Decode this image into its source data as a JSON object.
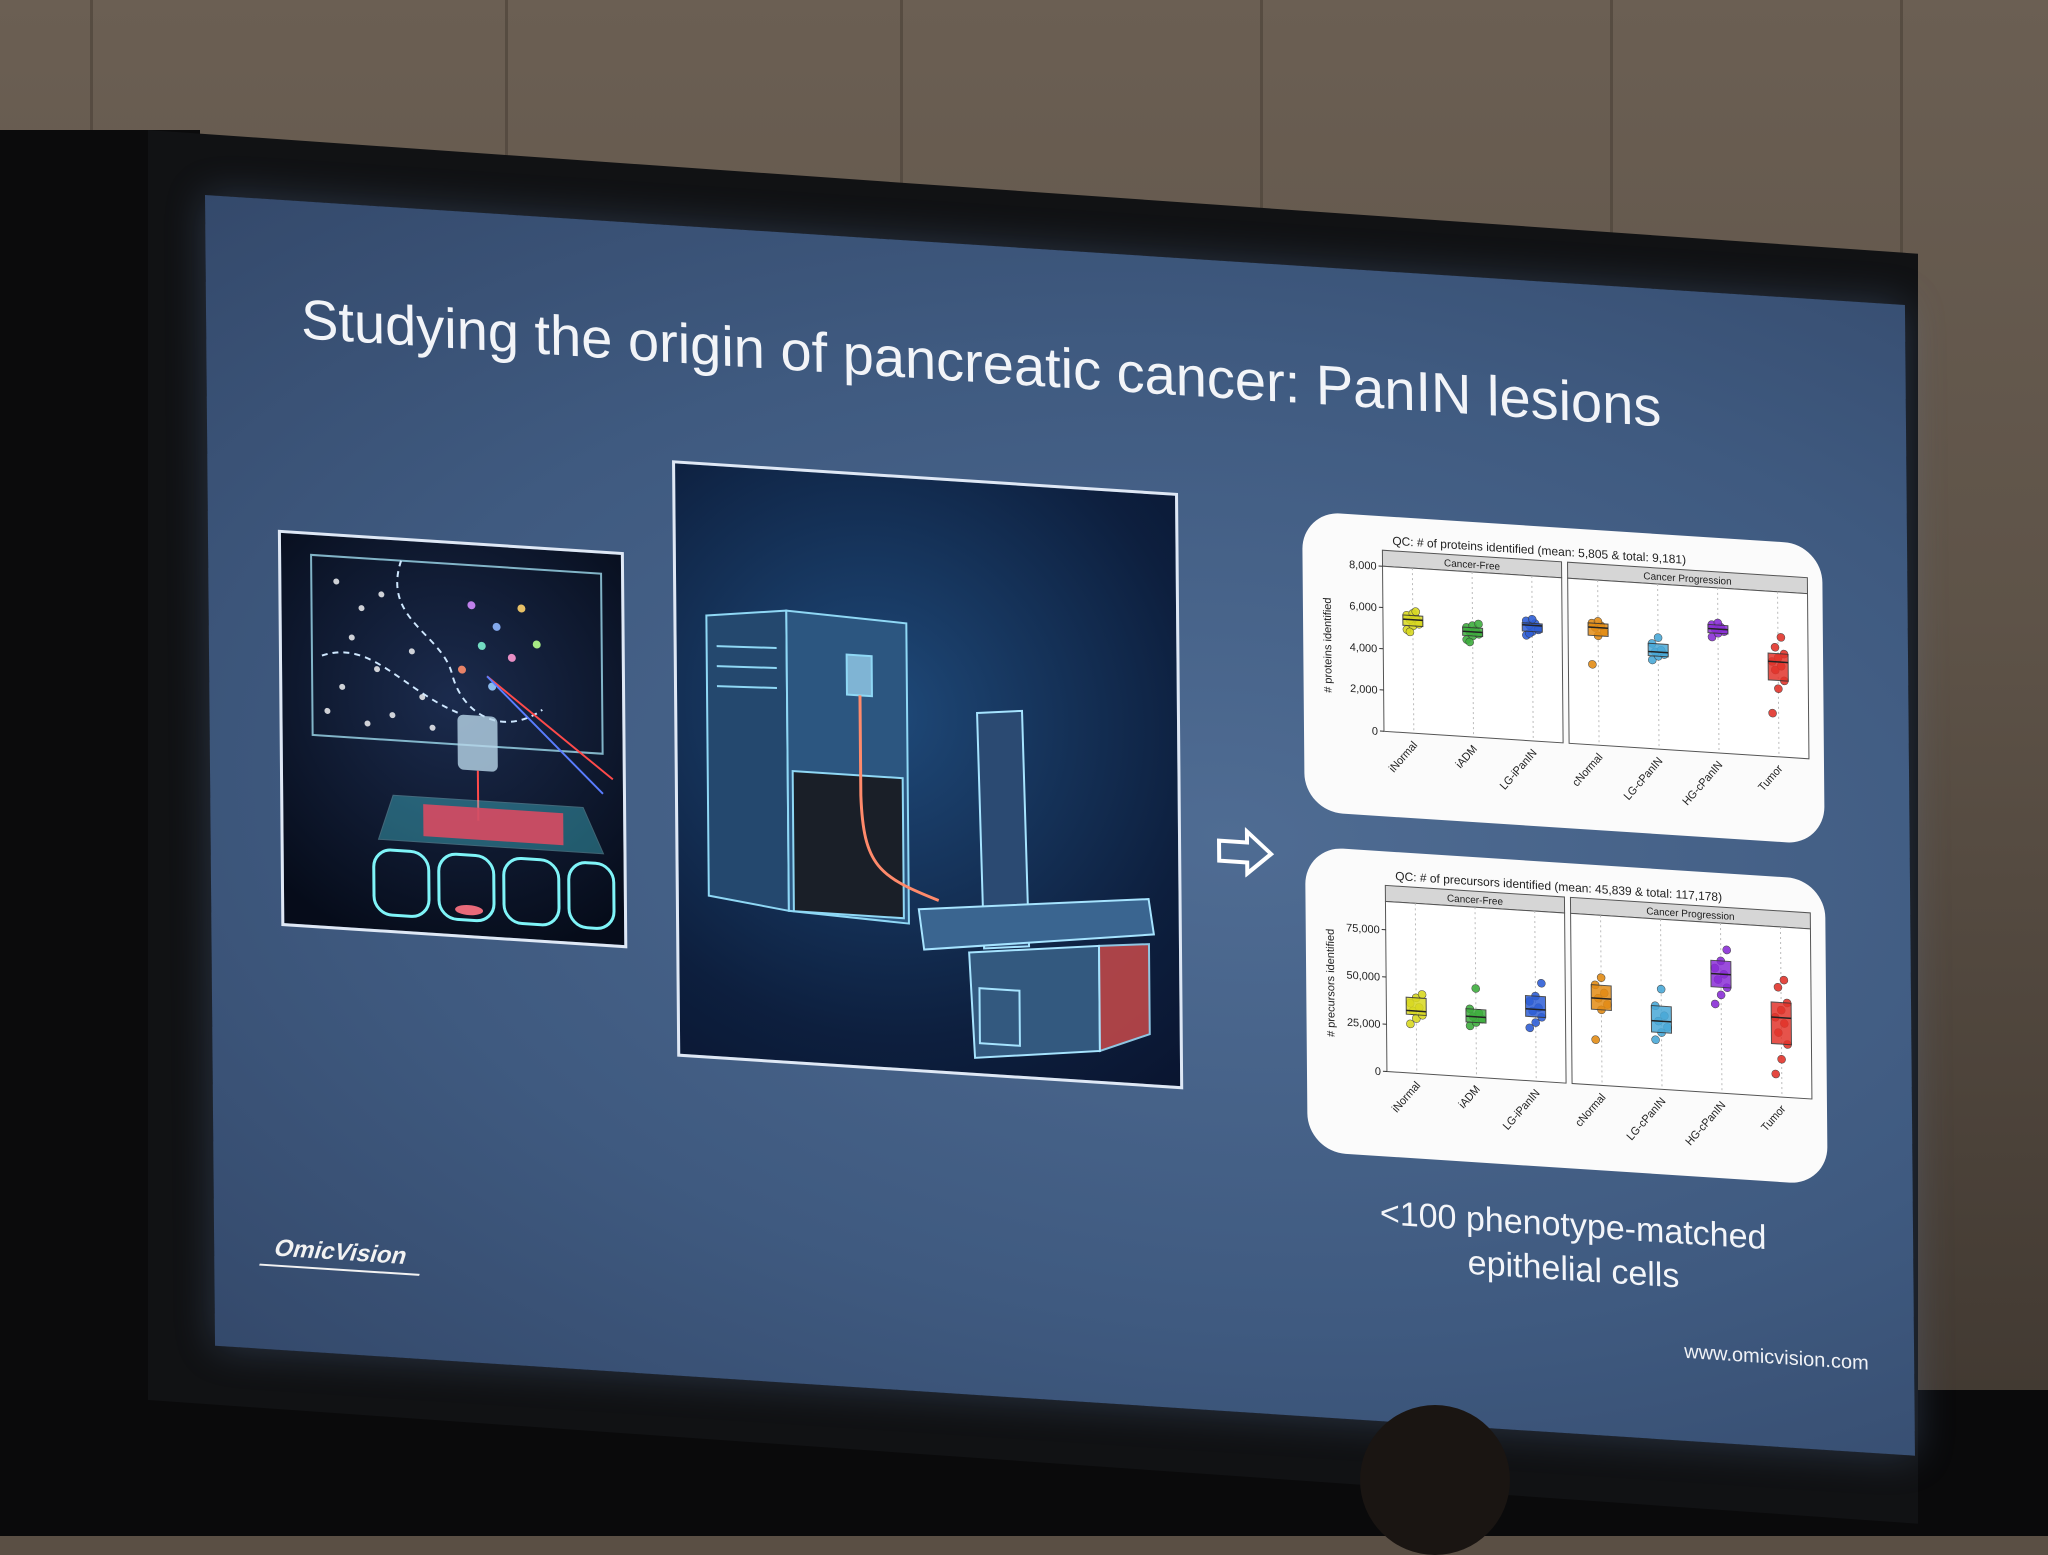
{
  "slide": {
    "title": "Studying the origin of pancreatic cancer: PanIN lesions",
    "caption_line1": "<100 phenotype-matched",
    "caption_line2": "epithelial cells",
    "logo": "OmicVision",
    "website": "www.omicvision.com",
    "arrow_icon": "right-arrow-icon"
  },
  "chart_data": [
    {
      "type": "scatter",
      "title": "QC: # of proteins identified (mean: 5,805 & total: 9,181)",
      "ylabel": "# proteins identified",
      "xlabel": "",
      "ylim": [
        0,
        8000
      ],
      "yticks": [
        "0",
        "2,000",
        "4,000",
        "6,000",
        "8,000"
      ],
      "facets": [
        "Cancer-Free",
        "Cancer Progression"
      ],
      "categories": [
        "iNormal",
        "iADM",
        "LG-iPanIN",
        "cNormal",
        "LG-cPanIN",
        "HG-cPanIN",
        "Tumor"
      ],
      "colors": [
        "#d9d921",
        "#3fae3f",
        "#2f5fd6",
        "#e38c16",
        "#4aa9d8",
        "#8a2fd6",
        "#e2352c"
      ],
      "medians": [
        5500,
        5100,
        5600,
        5700,
        4700,
        6000,
        4600
      ],
      "points": [
        [
          5000,
          5200,
          5400,
          5500,
          5600,
          5700,
          5800,
          5300,
          4900,
          5900
        ],
        [
          4700,
          4900,
          5000,
          5100,
          5200,
          5300,
          5400,
          5500,
          4600
        ],
        [
          5100,
          5300,
          5500,
          5600,
          5700,
          5800,
          5900,
          5400,
          5200
        ],
        [
          3900,
          5300,
          5500,
          5700,
          5800,
          5900,
          6000
        ],
        [
          4300,
          4500,
          4600,
          4700,
          4800,
          5100,
          5400
        ],
        [
          5600,
          5800,
          5900,
          6000,
          6100,
          6200,
          6300
        ],
        [
          2100,
          3300,
          3700,
          4200,
          4400,
          4600,
          4800,
          5000,
          5300,
          5800
        ]
      ]
    },
    {
      "type": "scatter",
      "title": "QC: # of precursors identified (mean: 45,839 & total: 117,178)",
      "ylabel": "# precursors identified",
      "xlabel": "",
      "ylim": [
        0,
        90000
      ],
      "yticks": [
        "0",
        "25,000",
        "50,000",
        "75,000"
      ],
      "facets": [
        "Cancer-Free",
        "Cancer Progression"
      ],
      "categories": [
        "iNormal",
        "iADM",
        "LG-iPanIN",
        "cNormal",
        "LG-cPanIN",
        "HG-cPanIN",
        "Tumor"
      ],
      "colors": [
        "#d9d921",
        "#3fae3f",
        "#2f5fd6",
        "#e38c16",
        "#4aa9d8",
        "#8a2fd6",
        "#e2352c"
      ],
      "medians": [
        33000,
        32000,
        38000,
        46000,
        36000,
        63000,
        42000
      ],
      "points": [
        [
          26000,
          29000,
          31000,
          33000,
          35000,
          37000,
          40000,
          42000
        ],
        [
          27000,
          29000,
          31000,
          32000,
          34000,
          36000,
          47000
        ],
        [
          28000,
          31000,
          34000,
          37000,
          39000,
          42000,
          45000,
          52000
        ],
        [
          24000,
          40000,
          43000,
          46000,
          49000,
          53000,
          57000
        ],
        [
          26000,
          30000,
          33000,
          36000,
          39000,
          44000,
          53000
        ],
        [
          47000,
          52000,
          56000,
          60000,
          63000,
          66000,
          70000,
          76000
        ],
        [
          12000,
          20000,
          28000,
          34000,
          39000,
          42000,
          46000,
          50000,
          58000,
          62000
        ]
      ]
    }
  ]
}
